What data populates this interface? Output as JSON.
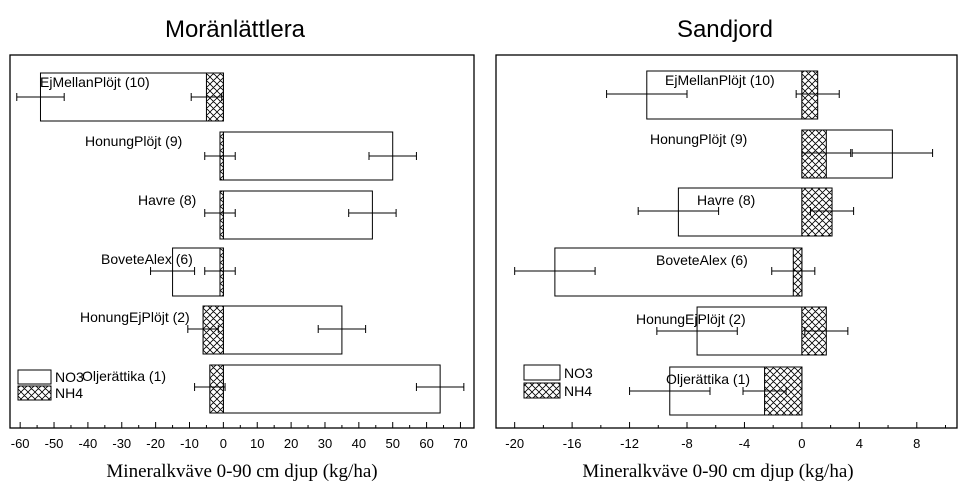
{
  "chart_data": [
    {
      "type": "bar",
      "orientation": "horizontal",
      "title": "Moränlättlera",
      "xlabel": "Mineralkväve 0-90 cm djup (kg/ha)",
      "xlim": [
        -63,
        74
      ],
      "xticks": [
        -60,
        -50,
        -40,
        -30,
        -20,
        -10,
        0,
        10,
        20,
        30,
        40,
        50,
        60,
        70
      ],
      "categories": [
        "EjMellanPlöjt (10)",
        "HonungPlöjt (9)",
        "Havre (8)",
        "BoveteAlex (6)",
        "HonungEjPlöjt (2)",
        "Oljerättika (1)"
      ],
      "series": [
        {
          "name": "NO3",
          "values": [
            -54,
            50,
            44,
            -15,
            35,
            64
          ],
          "errors": [
            7,
            7,
            7,
            6.5,
            7,
            7
          ],
          "pattern": "none"
        },
        {
          "name": "NH4",
          "values": [
            -5,
            -1,
            -1,
            -1,
            -6,
            -4
          ],
          "errors": [
            4.5,
            4.5,
            4.5,
            4.5,
            4.5,
            4.5
          ],
          "pattern": "crosshatch"
        }
      ],
      "legend": "bottom-left",
      "grid": false
    },
    {
      "type": "bar",
      "orientation": "horizontal",
      "title": "Sandjord",
      "xlabel": "Mineralkväve 0-90 cm djup (kg/ha)",
      "xlim": [
        -21.3,
        10.8
      ],
      "xticks": [
        -20,
        -16,
        -12,
        -8,
        -4,
        0,
        4,
        8
      ],
      "categories": [
        "EjMellanPlöjt (10)",
        "HonungPlöjt (9)",
        "Havre (8)",
        "BoveteAlex (6)",
        "HonungEjPlöjt (2)",
        "Oljerättika (1)"
      ],
      "series": [
        {
          "name": "NO3",
          "values": [
            -10.8,
            6.3,
            -8.6,
            -17.2,
            -7.3,
            -9.2
          ],
          "errors": [
            2.8,
            2.8,
            2.8,
            2.8,
            2.8,
            2.8
          ],
          "pattern": "none"
        },
        {
          "name": "NH4",
          "values": [
            1.1,
            1.7,
            2.1,
            -0.6,
            1.7,
            -2.6
          ],
          "errors": [
            1.5,
            1.7,
            1.5,
            1.5,
            1.5,
            1.5
          ],
          "pattern": "crosshatch"
        }
      ],
      "legend": "bottom-left",
      "grid": false
    }
  ]
}
